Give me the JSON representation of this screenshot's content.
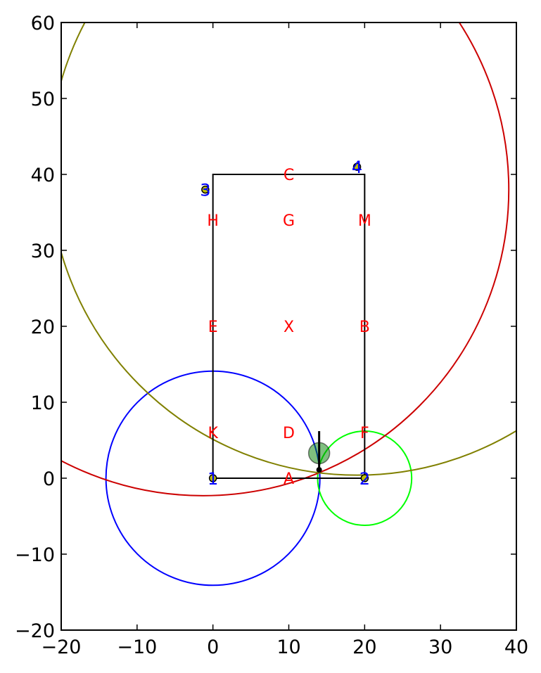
{
  "chart_data": {
    "type": "scatter",
    "title": "",
    "xlabel": "",
    "ylabel": "",
    "xlim": [
      -20,
      40
    ],
    "ylim": [
      -20,
      60
    ],
    "x_ticks": [
      -20,
      -10,
      0,
      10,
      20,
      30,
      40
    ],
    "y_ticks": [
      -20,
      -10,
      0,
      10,
      20,
      30,
      40,
      50,
      60
    ],
    "x_tick_labels": [
      "−20",
      "−10",
      "0",
      "10",
      "20",
      "30",
      "40"
    ],
    "y_tick_labels": [
      "−20",
      "−10",
      "0",
      "10",
      "20",
      "30",
      "40",
      "50",
      "60"
    ],
    "grid": false,
    "arena": {
      "corners": [
        [
          0,
          0
        ],
        [
          20,
          0
        ],
        [
          20,
          40
        ],
        [
          0,
          40
        ]
      ],
      "color": "#000000"
    },
    "letter_markers": [
      {
        "label": "A",
        "x": 10,
        "y": 0
      },
      {
        "label": "B",
        "x": 20,
        "y": 20
      },
      {
        "label": "C",
        "x": 10,
        "y": 40
      },
      {
        "label": "D",
        "x": 10,
        "y": 6
      },
      {
        "label": "E",
        "x": 0,
        "y": 20
      },
      {
        "label": "F",
        "x": 20,
        "y": 6
      },
      {
        "label": "G",
        "x": 10,
        "y": 34
      },
      {
        "label": "H",
        "x": 0,
        "y": 34
      },
      {
        "label": "K",
        "x": 0,
        "y": 6
      },
      {
        "label": "M",
        "x": 20,
        "y": 34
      },
      {
        "label": "X",
        "x": 10,
        "y": 20
      }
    ],
    "letter_color": "#ff0000",
    "beacons": [
      {
        "label": "1",
        "x": 0,
        "y": 0
      },
      {
        "label": "2",
        "x": 20,
        "y": 0
      },
      {
        "label": "3",
        "x": -1,
        "y": 38
      },
      {
        "label": "4",
        "x": 19,
        "y": 41
      }
    ],
    "beacon_label_color": "#0000ff",
    "beacon_fill_color": "#bfbf00",
    "circles": [
      {
        "cx": 0,
        "cy": 0,
        "r": 14.1,
        "color": "#0000ff"
      },
      {
        "cx": 20,
        "cy": 0,
        "r": 6.2,
        "color": "#00ff00"
      },
      {
        "cx": -1.3,
        "cy": 38,
        "r": 40.3,
        "color": "#cc0000"
      },
      {
        "cx": 19,
        "cy": 41,
        "r": 40.6,
        "color": "#808000"
      }
    ],
    "estimate": {
      "x": 14,
      "y": 3.3,
      "color": "#008000"
    },
    "robot": {
      "x": 14,
      "y": 1.1,
      "heading_end": [
        14,
        6.2
      ],
      "color": "#000000"
    }
  }
}
